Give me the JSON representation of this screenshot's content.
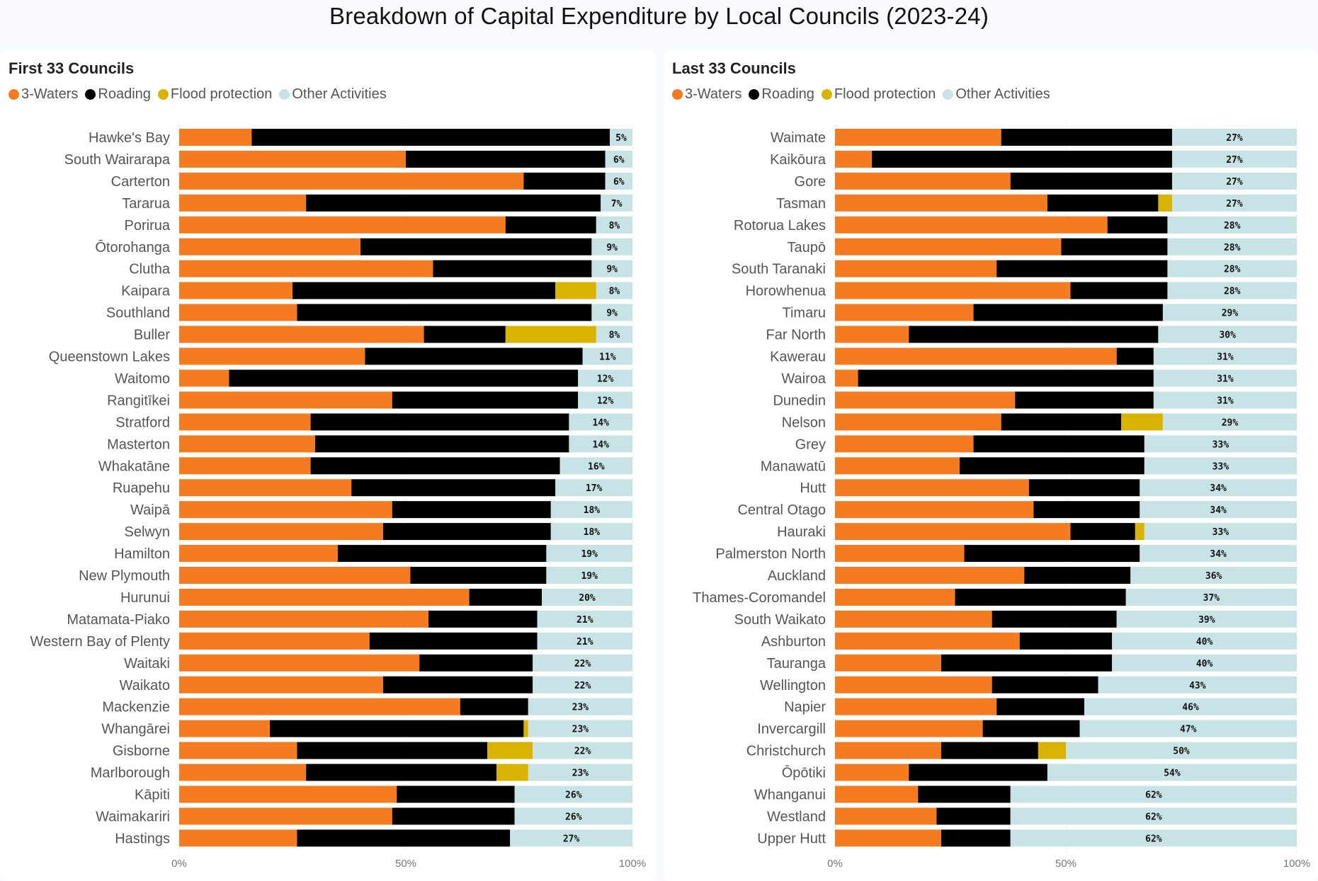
{
  "title": "Breakdown of Capital Expenditure by Local Councils (2023-24)",
  "colors": {
    "three_waters": "#F47B20",
    "roading": "#000000",
    "flood_protection": "#D9B300",
    "other": "#C8E3E6"
  },
  "legend": [
    {
      "key": "three_waters",
      "label": "3-Waters"
    },
    {
      "key": "roading",
      "label": "Roading"
    },
    {
      "key": "flood_protection",
      "label": "Flood protection"
    },
    {
      "key": "other",
      "label": "Other Activities"
    }
  ],
  "panels": [
    {
      "title": "First 33 Councils"
    },
    {
      "title": "Last 33 Councils"
    }
  ],
  "chart_data": [
    {
      "type": "bar",
      "orientation": "horizontal",
      "stacked": "100%",
      "title": "First 33 Councils",
      "xlabel": "",
      "ylabel": "",
      "xlim": [
        0,
        100
      ],
      "xticks": [
        "0%",
        "50%",
        "100%"
      ],
      "legend_position": "top-left",
      "categories": [
        "Hawke's Bay",
        "South Wairarapa",
        "Carterton",
        "Tararua",
        "Porirua",
        "Ōtorohanga",
        "Clutha",
        "Kaipara",
        "Southland",
        "Buller",
        "Queenstown Lakes",
        "Waitomo",
        "Rangitīkei",
        "Stratford",
        "Masterton",
        "Whakatāne",
        "Ruapehu",
        "Waipā",
        "Selwyn",
        "Hamilton",
        "New Plymouth",
        "Hurunui",
        "Matamata-Piako",
        "Western Bay of Plenty",
        "Waitaki",
        "Waikato",
        "Mackenzie",
        "Whangārei",
        "Gisborne",
        "Marlborough",
        "Kāpiti",
        "Waimakariri",
        "Hastings"
      ],
      "series": [
        {
          "name": "3-Waters",
          "values": [
            16,
            50,
            76,
            28,
            72,
            40,
            56,
            25,
            26,
            54,
            41,
            11,
            47,
            29,
            30,
            29,
            38,
            47,
            45,
            35,
            51,
            64,
            55,
            42,
            53,
            45,
            62,
            20,
            26,
            28,
            48,
            47,
            26
          ]
        },
        {
          "name": "Roading",
          "values": [
            79,
            44,
            18,
            65,
            20,
            51,
            35,
            58,
            65,
            18,
            48,
            77,
            41,
            57,
            56,
            55,
            45,
            35,
            37,
            46,
            30,
            16,
            24,
            37,
            25,
            33,
            15,
            56,
            42,
            42,
            26,
            27,
            47
          ]
        },
        {
          "name": "Flood protection",
          "values": [
            0,
            0,
            0,
            0,
            0,
            0,
            0,
            9,
            0,
            20,
            0,
            0,
            0,
            0,
            0,
            0,
            0,
            0,
            0,
            0,
            0,
            0,
            0,
            0,
            0,
            0,
            0,
            1,
            10,
            7,
            0,
            0,
            0
          ]
        },
        {
          "name": "Other Activities",
          "values": [
            5,
            6,
            6,
            7,
            8,
            9,
            9,
            8,
            9,
            8,
            11,
            12,
            12,
            14,
            14,
            16,
            17,
            18,
            18,
            19,
            19,
            20,
            21,
            21,
            22,
            22,
            23,
            23,
            22,
            23,
            26,
            26,
            27
          ]
        }
      ],
      "data_labels": [
        "5%",
        "6%",
        "6%",
        "7%",
        "8%",
        "9%",
        "9%",
        "8%",
        "9%",
        "8%",
        "11%",
        "12%",
        "12%",
        "14%",
        "14%",
        "16%",
        "17%",
        "18%",
        "18%",
        "19%",
        "19%",
        "20%",
        "21%",
        "21%",
        "22%",
        "22%",
        "23%",
        "23%",
        "22%",
        "23%",
        "26%",
        "26%",
        "27%"
      ]
    },
    {
      "type": "bar",
      "orientation": "horizontal",
      "stacked": "100%",
      "title": "Last 33 Councils",
      "xlabel": "",
      "ylabel": "",
      "xlim": [
        0,
        100
      ],
      "xticks": [
        "0%",
        "50%",
        "100%"
      ],
      "legend_position": "top-left",
      "categories": [
        "Waimate",
        "Kaikōura",
        "Gore",
        "Tasman",
        "Rotorua Lakes",
        "Taupō",
        "South Taranaki",
        "Horowhenua",
        "Timaru",
        "Far North",
        "Kawerau",
        "Wairoa",
        "Dunedin",
        "Nelson",
        "Grey",
        "Manawatū",
        "Hutt",
        "Central Otago",
        "Hauraki",
        "Palmerston North",
        "Auckland",
        "Thames-Coromandel",
        "South Waikato",
        "Ashburton",
        "Tauranga",
        "Wellington",
        "Napier",
        "Invercargill",
        "Christchurch",
        "Ōpōtiki",
        "Whanganui",
        "Westland",
        "Upper Hutt"
      ],
      "series": [
        {
          "name": "3-Waters",
          "values": [
            36,
            8,
            38,
            46,
            59,
            49,
            35,
            51,
            30,
            16,
            61,
            5,
            39,
            36,
            30,
            27,
            42,
            43,
            51,
            28,
            41,
            26,
            34,
            40,
            23,
            34,
            35,
            32,
            23,
            16,
            18,
            22,
            23
          ]
        },
        {
          "name": "Roading",
          "values": [
            37,
            65,
            35,
            24,
            13,
            23,
            37,
            21,
            41,
            54,
            8,
            64,
            30,
            26,
            37,
            40,
            24,
            23,
            14,
            38,
            23,
            37,
            27,
            20,
            37,
            23,
            19,
            21,
            21,
            30,
            20,
            16,
            15
          ]
        },
        {
          "name": "Flood protection",
          "values": [
            0,
            0,
            0,
            3,
            0,
            0,
            0,
            0,
            0,
            0,
            0,
            0,
            0,
            9,
            0,
            0,
            0,
            0,
            2,
            0,
            0,
            0,
            0,
            0,
            0,
            0,
            0,
            0,
            6,
            0,
            0,
            0,
            0
          ]
        },
        {
          "name": "Other Activities",
          "values": [
            27,
            27,
            27,
            27,
            28,
            28,
            28,
            28,
            29,
            30,
            31,
            31,
            31,
            29,
            33,
            33,
            34,
            34,
            33,
            34,
            36,
            37,
            39,
            40,
            40,
            43,
            46,
            47,
            50,
            54,
            62,
            62,
            62
          ]
        }
      ],
      "data_labels": [
        "27%",
        "27%",
        "27%",
        "27%",
        "28%",
        "28%",
        "28%",
        "28%",
        "29%",
        "30%",
        "31%",
        "31%",
        "31%",
        "29%",
        "33%",
        "33%",
        "34%",
        "34%",
        "33%",
        "34%",
        "36%",
        "37%",
        "39%",
        "40%",
        "40%",
        "43%",
        "46%",
        "47%",
        "50%",
        "54%",
        "62%",
        "62%",
        "62%"
      ]
    }
  ]
}
